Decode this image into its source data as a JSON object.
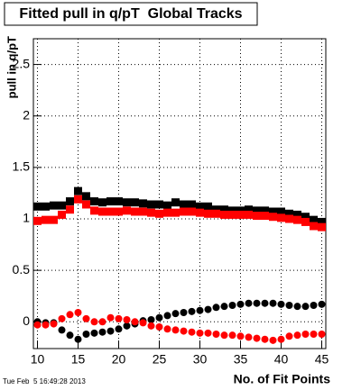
{
  "chart_data": {
    "type": "scatter",
    "title": "Fitted pull in q/pT  Global Tracks",
    "y_label": "pull in q/pT",
    "x_label": "No. of Fit Points",
    "timestamp": "Tue Feb  5 16:49:28 2013",
    "x": [
      10,
      11,
      12,
      13,
      14,
      15,
      16,
      17,
      18,
      19,
      20,
      21,
      22,
      23,
      24,
      25,
      26,
      27,
      28,
      29,
      30,
      31,
      32,
      33,
      34,
      35,
      36,
      37,
      38,
      39,
      40,
      41,
      42,
      43,
      44,
      45
    ],
    "series": [
      {
        "color": "#000000",
        "marker": "square",
        "values": [
          1.12,
          1.12,
          1.13,
          1.13,
          1.17,
          1.27,
          1.22,
          1.17,
          1.16,
          1.17,
          1.17,
          1.16,
          1.16,
          1.15,
          1.14,
          1.14,
          1.13,
          1.16,
          1.14,
          1.14,
          1.12,
          1.12,
          1.09,
          1.09,
          1.08,
          1.08,
          1.09,
          1.08,
          1.08,
          1.07,
          1.07,
          1.05,
          1.04,
          1.02,
          0.99,
          0.97
        ]
      },
      {
        "color": "#ff0000",
        "marker": "square",
        "values": [
          0.98,
          0.99,
          0.99,
          1.04,
          1.09,
          1.19,
          1.14,
          1.08,
          1.07,
          1.07,
          1.07,
          1.08,
          1.07,
          1.07,
          1.06,
          1.05,
          1.06,
          1.06,
          1.07,
          1.07,
          1.06,
          1.05,
          1.05,
          1.04,
          1.04,
          1.04,
          1.04,
          1.03,
          1.03,
          1.02,
          1.01,
          1.0,
          0.99,
          0.97,
          0.93,
          0.92
        ]
      },
      {
        "color": "#000000",
        "marker": "circle",
        "values": [
          0.0,
          -0.01,
          -0.01,
          -0.08,
          -0.13,
          -0.17,
          -0.12,
          -0.11,
          -0.1,
          -0.09,
          -0.07,
          -0.04,
          -0.02,
          0.01,
          0.02,
          0.04,
          0.06,
          0.08,
          0.09,
          0.1,
          0.11,
          0.12,
          0.14,
          0.15,
          0.16,
          0.17,
          0.18,
          0.18,
          0.18,
          0.18,
          0.17,
          0.16,
          0.15,
          0.15,
          0.16,
          0.17
        ]
      },
      {
        "color": "#ff0000",
        "marker": "circle",
        "values": [
          -0.03,
          -0.03,
          -0.02,
          0.03,
          0.07,
          0.09,
          0.03,
          0.0,
          0.0,
          0.04,
          0.03,
          0.02,
          0.0,
          -0.01,
          -0.04,
          -0.05,
          -0.07,
          -0.08,
          -0.09,
          -0.1,
          -0.11,
          -0.11,
          -0.12,
          -0.13,
          -0.13,
          -0.14,
          -0.15,
          -0.16,
          -0.17,
          -0.18,
          -0.17,
          -0.14,
          -0.13,
          -0.12,
          -0.12,
          -0.12
        ]
      }
    ],
    "xlim": [
      9.5,
      45.5
    ],
    "xticks": [
      10,
      15,
      20,
      25,
      30,
      35,
      40,
      45
    ],
    "ylim": [
      -0.26,
      2.75
    ],
    "yticks": [
      0,
      0.5,
      1,
      1.5,
      2,
      2.5
    ],
    "grid": true
  }
}
